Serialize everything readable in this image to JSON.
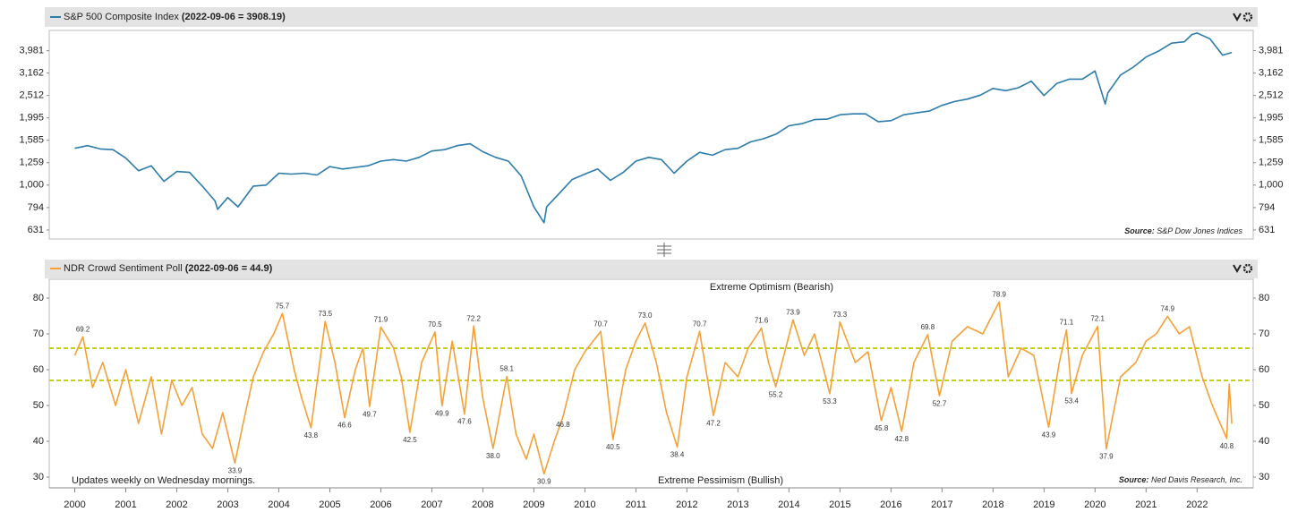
{
  "chart_data": [
    {
      "type": "line",
      "log_scale": true,
      "grid": false,
      "series": [
        {
          "name": "S&P 500 Composite Index",
          "note": "(2022-09-06 = 3908.19)",
          "color": "#2b7bab",
          "x": [
            2000.0,
            2000.25,
            2000.5,
            2000.75,
            2001.0,
            2001.25,
            2001.5,
            2001.75,
            2002.0,
            2002.25,
            2002.5,
            2002.75,
            2002.8,
            2003.0,
            2003.2,
            2003.5,
            2003.75,
            2004.0,
            2004.25,
            2004.5,
            2004.75,
            2005.0,
            2005.25,
            2005.5,
            2005.75,
            2006.0,
            2006.25,
            2006.5,
            2006.75,
            2007.0,
            2007.25,
            2007.5,
            2007.75,
            2008.0,
            2008.25,
            2008.5,
            2008.75,
            2009.0,
            2009.2,
            2009.25,
            2009.5,
            2009.75,
            2010.0,
            2010.25,
            2010.5,
            2010.75,
            2011.0,
            2011.25,
            2011.5,
            2011.75,
            2012.0,
            2012.25,
            2012.5,
            2012.75,
            2013.0,
            2013.25,
            2013.5,
            2013.75,
            2014.0,
            2014.25,
            2014.5,
            2014.75,
            2015.0,
            2015.25,
            2015.5,
            2015.75,
            2016.0,
            2016.25,
            2016.5,
            2016.75,
            2017.0,
            2017.25,
            2017.5,
            2017.75,
            2018.0,
            2018.25,
            2018.5,
            2018.75,
            2019.0,
            2019.25,
            2019.5,
            2019.75,
            2020.0,
            2020.2,
            2020.25,
            2020.5,
            2020.75,
            2021.0,
            2021.25,
            2021.5,
            2021.75,
            2021.9,
            2022.0,
            2022.25,
            2022.5,
            2022.68
          ],
          "values": [
            1460,
            1500,
            1450,
            1440,
            1320,
            1160,
            1220,
            1040,
            1150,
            1140,
            990,
            850,
            780,
            880,
            800,
            990,
            1000,
            1130,
            1120,
            1130,
            1110,
            1210,
            1180,
            1200,
            1220,
            1280,
            1300,
            1280,
            1330,
            1420,
            1440,
            1500,
            1530,
            1410,
            1330,
            1280,
            1100,
            800,
            680,
            800,
            920,
            1060,
            1120,
            1180,
            1050,
            1140,
            1280,
            1330,
            1300,
            1130,
            1280,
            1400,
            1360,
            1440,
            1460,
            1560,
            1610,
            1690,
            1840,
            1880,
            1960,
            1970,
            2060,
            2080,
            2080,
            1920,
            1940,
            2060,
            2100,
            2140,
            2270,
            2360,
            2420,
            2520,
            2700,
            2640,
            2720,
            2910,
            2510,
            2840,
            2970,
            2970,
            3230,
            2300,
            2580,
            3100,
            3360,
            3730,
            3970,
            4300,
            4360,
            4700,
            4770,
            4500,
            3800,
            3908.19
          ]
        }
      ],
      "xlim": [
        1999.5,
        2023.1
      ],
      "ylim": [
        575,
        4900
      ],
      "yticks": [
        {
          "value": 631,
          "label": "631"
        },
        {
          "value": 794,
          "label": "794"
        },
        {
          "value": 1000,
          "label": "1,000"
        },
        {
          "value": 1259,
          "label": "1,259"
        },
        {
          "value": 1585,
          "label": "1,585"
        },
        {
          "value": 1995,
          "label": "1,995"
        },
        {
          "value": 2512,
          "label": "2,512"
        },
        {
          "value": 3162,
          "label": "3,162"
        },
        {
          "value": 3981,
          "label": "3,981"
        }
      ],
      "source_label": "Source:",
      "source": "S&P Dow Jones Indices"
    },
    {
      "type": "line",
      "log_scale": false,
      "grid": false,
      "series": [
        {
          "name": "NDR Crowd Sentiment Poll",
          "note": "(2022-09-06 = 44.9)",
          "color": "#f7a035",
          "x": [
            2000.0,
            2000.16,
            2000.35,
            2000.55,
            2000.8,
            2001.0,
            2001.25,
            2001.5,
            2001.7,
            2001.9,
            2002.1,
            2002.3,
            2002.5,
            2002.7,
            2002.9,
            2003.14,
            2003.3,
            2003.5,
            2003.7,
            2003.9,
            2004.07,
            2004.3,
            2004.45,
            2004.63,
            2004.91,
            2005.1,
            2005.29,
            2005.5,
            2005.65,
            2005.78,
            2006.0,
            2006.25,
            2006.4,
            2006.57,
            2006.8,
            2007.06,
            2007.2,
            2007.4,
            2007.64,
            2007.82,
            2008.0,
            2008.2,
            2008.47,
            2008.65,
            2008.85,
            2009.0,
            2009.2,
            2009.4,
            2009.57,
            2009.8,
            2010.0,
            2010.31,
            2010.55,
            2010.8,
            2011.0,
            2011.18,
            2011.4,
            2011.6,
            2011.81,
            2012.0,
            2012.25,
            2012.52,
            2012.75,
            2013.0,
            2013.2,
            2013.46,
            2013.6,
            2013.74,
            2014.08,
            2014.3,
            2014.5,
            2014.8,
            2015.0,
            2015.3,
            2015.55,
            2015.81,
            2016.0,
            2016.21,
            2016.45,
            2016.72,
            2016.95,
            2017.2,
            2017.5,
            2017.8,
            2018.12,
            2018.3,
            2018.55,
            2018.8,
            2019.09,
            2019.3,
            2019.44,
            2019.54,
            2019.75,
            2020.05,
            2020.22,
            2020.5,
            2020.8,
            2021.0,
            2021.2,
            2021.42,
            2021.65,
            2021.85,
            2022.1,
            2022.3,
            2022.58,
            2022.63,
            2022.68
          ],
          "values": [
            64,
            69.2,
            55,
            62,
            50,
            60,
            45,
            58,
            42,
            57,
            50,
            55,
            42,
            38,
            48,
            33.9,
            45,
            58,
            65,
            70,
            75.7,
            60,
            52,
            43.8,
            73.5,
            62,
            46.6,
            60,
            66,
            49.7,
            71.9,
            66,
            58,
            42.5,
            62,
            70.5,
            49.9,
            68,
            47.6,
            72.2,
            52,
            38.0,
            58.1,
            42,
            35,
            42,
            30.9,
            40,
            46.8,
            60,
            65,
            70.7,
            40.5,
            60,
            68,
            73.0,
            62,
            48,
            38.4,
            58,
            70.7,
            47.2,
            62,
            58,
            66,
            71.6,
            62,
            55.2,
            73.9,
            64,
            70,
            53.3,
            73.3,
            62,
            65,
            45.8,
            55,
            42.8,
            62,
            69.8,
            52.7,
            68,
            72,
            70,
            78.9,
            58,
            66,
            64,
            43.9,
            62,
            71.1,
            53.4,
            64,
            72.1,
            37.9,
            58,
            62,
            68,
            70,
            74.9,
            70,
            72,
            58,
            50,
            40.8,
            56,
            44.9
          ]
        }
      ],
      "labeled_points": {
        "x": [
          2000.16,
          2003.14,
          2004.07,
          2004.63,
          2004.91,
          2005.29,
          2005.78,
          2006.0,
          2006.57,
          2007.06,
          2007.2,
          2007.64,
          2007.82,
          2008.2,
          2008.47,
          2009.2,
          2009.57,
          2010.31,
          2010.55,
          2011.18,
          2011.81,
          2012.25,
          2012.52,
          2013.46,
          2013.74,
          2014.08,
          2014.8,
          2015.0,
          2015.81,
          2016.21,
          2016.72,
          2016.95,
          2018.12,
          2019.09,
          2019.44,
          2019.54,
          2020.05,
          2020.22,
          2021.42,
          2022.58
        ],
        "values": [
          69.2,
          33.9,
          75.7,
          43.8,
          73.5,
          46.6,
          49.7,
          71.9,
          42.5,
          70.5,
          49.9,
          47.6,
          72.2,
          38.0,
          58.1,
          30.9,
          46.8,
          70.7,
          40.5,
          73.0,
          38.4,
          70.7,
          47.2,
          71.6,
          55.2,
          73.9,
          53.3,
          73.3,
          45.8,
          42.8,
          69.8,
          52.7,
          78.9,
          43.9,
          71.1,
          53.4,
          72.1,
          37.9,
          74.9,
          40.8
        ],
        "value_labels": [
          "69.2",
          "33.9",
          "75.7",
          "43.8",
          "73.5",
          "46.6",
          "49.7",
          "71.9",
          "42.5",
          "70.5",
          "49.9",
          "47.6",
          "72.2",
          "38.0",
          "58.1",
          "30.9",
          "46.8",
          "70.7",
          "40.5",
          "73.0",
          "38.4",
          "70.7",
          "47.2",
          "71.6",
          "55.2",
          "73.9",
          "53.3",
          "73.3",
          "45.8",
          "42.8",
          "69.8",
          "52.7",
          "78.9",
          "43.9",
          "71.1",
          "53.4",
          "72.1",
          "37.9",
          "74.9",
          "40.8"
        ]
      },
      "reference_lines": {
        "values": [
          66,
          57
        ],
        "color": "#c5d300"
      },
      "xlim": [
        1999.5,
        2023.1
      ],
      "ylim": [
        27,
        85.25
      ],
      "yticks": [
        30,
        40,
        50,
        60,
        70,
        80
      ],
      "xticks": [
        2000,
        2001,
        2002,
        2003,
        2004,
        2005,
        2006,
        2007,
        2008,
        2009,
        2010,
        2011,
        2012,
        2013,
        2014,
        2015,
        2016,
        2017,
        2018,
        2019,
        2020,
        2021,
        2022
      ],
      "top_annotation": "Extreme Optimism (Bearish)",
      "bottom_annotation": "Extreme Pessimism (Bullish)",
      "note": "Updates weekly on Wednesday mornings.",
      "source_label": "Source:",
      "source": "Ned Davis Research, Inc."
    }
  ]
}
